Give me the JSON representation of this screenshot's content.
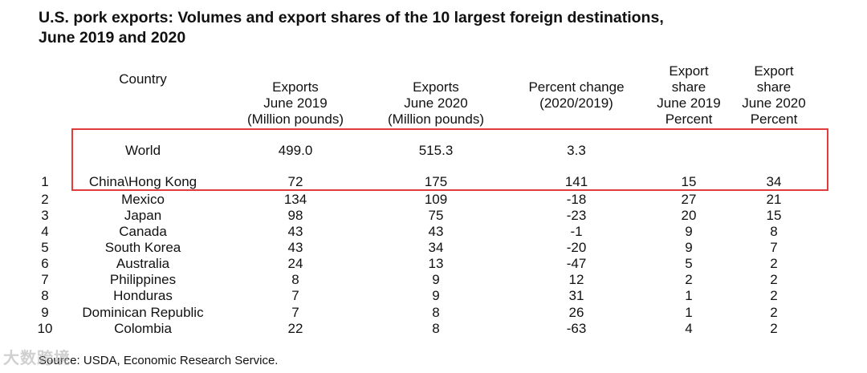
{
  "title": "U.S. pork exports: Volumes and export shares of the 10 largest foreign destinations, June 2019 and 2020",
  "headers": {
    "country": "Country",
    "exp2019": [
      "Exports",
      "June 2019",
      "(Million pounds)"
    ],
    "exp2020": [
      "Exports",
      "June 2020",
      "(Million pounds)"
    ],
    "pct": [
      "Percent change",
      "(2020/2019)"
    ],
    "share2019": [
      "Export",
      "share",
      "June 2019",
      "Percent"
    ],
    "share2020": [
      "Export",
      "share",
      "June 2020",
      "Percent"
    ]
  },
  "world": {
    "country": "World",
    "exp2019": "499.0",
    "exp2020": "515.3",
    "pct": "3.3"
  },
  "rows": [
    {
      "rank": "1",
      "country": "China\\Hong Kong",
      "exp2019": "72",
      "exp2020": "175",
      "pct": "141",
      "share2019": "15",
      "share2020": "34"
    },
    {
      "rank": "2",
      "country": "Mexico",
      "exp2019": "134",
      "exp2020": "109",
      "pct": "-18",
      "share2019": "27",
      "share2020": "21"
    },
    {
      "rank": "3",
      "country": "Japan",
      "exp2019": "98",
      "exp2020": "75",
      "pct": "-23",
      "share2019": "20",
      "share2020": "15"
    },
    {
      "rank": "4",
      "country": "Canada",
      "exp2019": "43",
      "exp2020": "43",
      "pct": "-1",
      "share2019": "9",
      "share2020": "8"
    },
    {
      "rank": "5",
      "country": "South Korea",
      "exp2019": "43",
      "exp2020": "34",
      "pct": "-20",
      "share2019": "9",
      "share2020": "7"
    },
    {
      "rank": "6",
      "country": "Australia",
      "exp2019": "24",
      "exp2020": "13",
      "pct": "-47",
      "share2019": "5",
      "share2020": "2"
    },
    {
      "rank": "7",
      "country": "Philippines",
      "exp2019": "8",
      "exp2020": "9",
      "pct": "12",
      "share2019": "2",
      "share2020": "2"
    },
    {
      "rank": "8",
      "country": "Honduras",
      "exp2019": "7",
      "exp2020": "9",
      "pct": "31",
      "share2019": "1",
      "share2020": "2"
    },
    {
      "rank": "9",
      "country": "Dominican Republic",
      "exp2019": "7",
      "exp2020": "8",
      "pct": "26",
      "share2019": "1",
      "share2020": "2"
    },
    {
      "rank": "10",
      "country": "Colombia",
      "exp2019": "22",
      "exp2020": "8",
      "pct": "-63",
      "share2019": "4",
      "share2020": "2"
    }
  ],
  "source": "Source: USDA, Economic Research Service.",
  "watermark": "大数跨境"
}
